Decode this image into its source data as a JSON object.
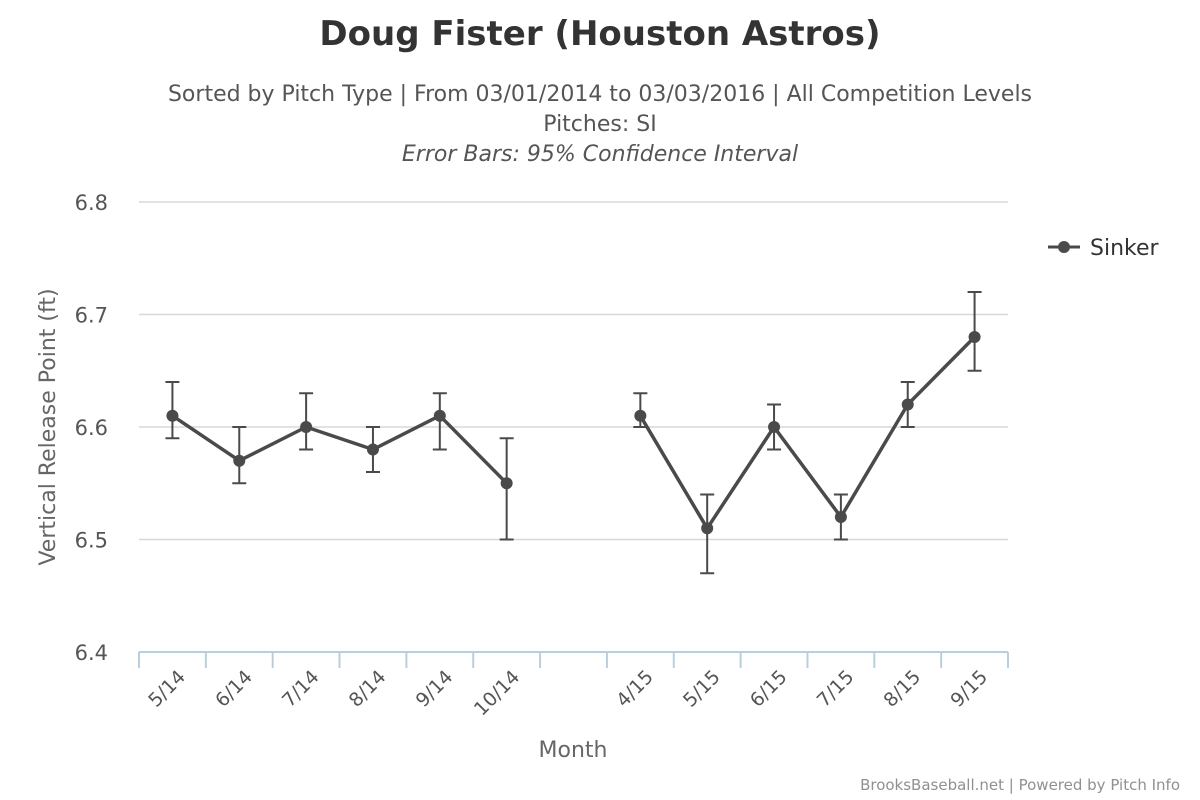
{
  "header": {
    "title": "Doug Fister (Houston Astros)",
    "subtitle_line1": "Sorted by Pitch Type | From 03/01/2014 to 03/03/2016 | All Competition Levels",
    "subtitle_line2": "Pitches: SI",
    "subtitle_line3": "Error Bars: 95% Confidence Interval"
  },
  "credit": "BrooksBaseball.net | Powered by Pitch Info",
  "chart_data": {
    "type": "line",
    "xlabel": "Month",
    "ylabel": "Vertical Release Point (ft)",
    "ylim": [
      6.4,
      6.8
    ],
    "yticks": [
      "6.4",
      "6.5",
      "6.6",
      "6.7",
      "6.8"
    ],
    "grid": true,
    "legend": "top-right",
    "categories": [
      "5/14",
      "6/14",
      "7/14",
      "8/14",
      "9/14",
      "10/14",
      "",
      "4/15",
      "5/15",
      "6/15",
      "7/15",
      "8/15",
      "9/15"
    ],
    "series": [
      {
        "name": "Sinker",
        "color": "#4a4a4a",
        "values": [
          6.61,
          6.57,
          6.6,
          6.58,
          6.61,
          6.55,
          null,
          6.61,
          6.51,
          6.6,
          6.52,
          6.62,
          6.68
        ],
        "error_low": [
          6.59,
          6.55,
          6.58,
          6.56,
          6.58,
          6.5,
          null,
          6.6,
          6.47,
          6.58,
          6.5,
          6.6,
          6.65
        ],
        "error_high": [
          6.64,
          6.6,
          6.63,
          6.6,
          6.63,
          6.59,
          null,
          6.63,
          6.54,
          6.62,
          6.54,
          6.64,
          6.72
        ]
      }
    ]
  }
}
